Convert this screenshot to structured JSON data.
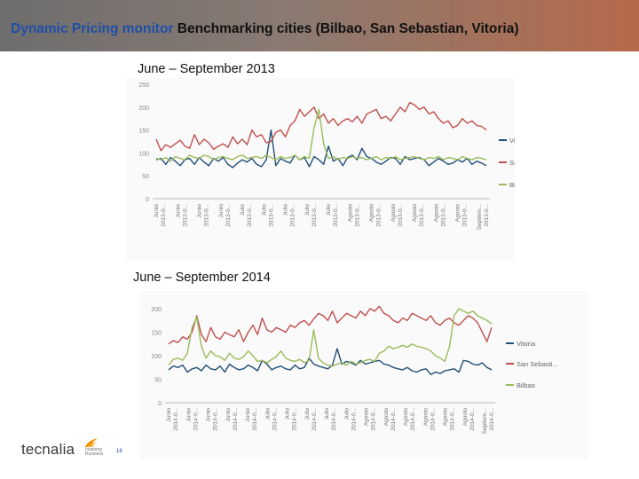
{
  "header": {
    "title_blue": "Dynamic Pricing monitor",
    "title_black": "Benchmarking cities (Bilbao, San Sebastian, Vitoria)"
  },
  "colors": {
    "vitoria": "#1f4e79",
    "san_sebastian": "#c0504d",
    "bilbao": "#9bbb59",
    "axis": "#888888"
  },
  "logo": {
    "text": "tecnalia",
    "tagline": [
      "Inspiring",
      "Business"
    ],
    "icon": "tecnalia-flame-icon"
  },
  "page_number": "16",
  "chart_data": [
    {
      "type": "line",
      "title": "June – September 2013",
      "ylim": [
        0,
        250
      ],
      "yticks": [
        "0",
        "50",
        "100",
        "150",
        "200",
        "250"
      ],
      "legend": [
        "Vitoria",
        "San Sebasti...",
        "Bilbao"
      ],
      "xtick_labels": [
        "Junio 2013-0...",
        "Junio 2013-0...",
        "Junio 2013-0...",
        "Junio 2013-0...",
        "Julio 2013-0...",
        "Julio 2013-0...",
        "Julio 2013-0...",
        "Julio 2013-0...",
        "Julio 2013-0...",
        "Agosto 2013-0...",
        "Agosto 2013-0...",
        "Agosto 2013-0...",
        "Agosto 2013-0...",
        "Agosto 2013-0...",
        "Agosto 2013-0...",
        "Septiem... 2013-0..."
      ],
      "series": [
        {
          "name": "Vitoria",
          "values": [
            85,
            88,
            75,
            90,
            82,
            72,
            85,
            88,
            75,
            90,
            80,
            72,
            88,
            82,
            90,
            75,
            68,
            78,
            85,
            80,
            88,
            75,
            70,
            85,
            150,
            72,
            88,
            82,
            78,
            95,
            85,
            90,
            70,
            92,
            85,
            75,
            115,
            82,
            88,
            72,
            90,
            95,
            85,
            110,
            92,
            88,
            80,
            75,
            82,
            90,
            88,
            75,
            92,
            85,
            88,
            90,
            85,
            72,
            80,
            88,
            82,
            75,
            78,
            85,
            80,
            88,
            75,
            82,
            78,
            72
          ]
        },
        {
          "name": "San Sebastian",
          "values": [
            130,
            105,
            118,
            112,
            120,
            128,
            115,
            110,
            140,
            118,
            130,
            122,
            108,
            115,
            120,
            112,
            135,
            120,
            130,
            118,
            150,
            135,
            140,
            122,
            125,
            145,
            150,
            135,
            160,
            170,
            195,
            180,
            190,
            200,
            175,
            185,
            165,
            175,
            160,
            170,
            175,
            168,
            180,
            165,
            185,
            190,
            195,
            175,
            180,
            170,
            185,
            200,
            190,
            210,
            205,
            195,
            200,
            185,
            190,
            175,
            165,
            170,
            155,
            160,
            175,
            165,
            170,
            160,
            158,
            150
          ]
        },
        {
          "name": "Bilbao",
          "values": [
            88,
            85,
            90,
            82,
            92,
            88,
            85,
            95,
            90,
            88,
            95,
            92,
            85,
            90,
            92,
            88,
            85,
            92,
            95,
            88,
            90,
            92,
            88,
            95,
            90,
            85,
            92,
            88,
            90,
            95,
            85,
            92,
            88,
            155,
            195,
            120,
            88,
            92,
            85,
            90,
            88,
            92,
            88,
            90,
            85,
            88,
            92,
            85,
            90,
            88,
            92,
            85,
            88,
            90,
            92,
            88,
            85,
            90,
            88,
            92,
            85,
            90,
            88,
            85,
            92,
            88,
            85,
            90,
            88,
            85
          ]
        }
      ]
    },
    {
      "type": "line",
      "title": "June – September 2014",
      "ylim": [
        0,
        200
      ],
      "yticks": [
        "0",
        "50",
        "100",
        "150",
        "200"
      ],
      "legend": [
        "Vitoria",
        "San Sebasti...",
        "Bilbao"
      ],
      "xtick_labels": [
        "Junio 2014-0...",
        "Junio 2014-0...",
        "Junio 2014-0...",
        "Junio 2014-0...",
        "Junio 2014-0...",
        "Julio 2014-0...",
        "Julio 2014-0...",
        "Julio 2014-0...",
        "Julio 2014-0...",
        "Julio 2014-0...",
        "Agosto 2014-0...",
        "Agosto 2014-0...",
        "Agosto 2014-0...",
        "Agosto 2014-0...",
        "Agosto 2014-0...",
        "Agosto 2014-0...",
        "Septiem... 2014-0..."
      ],
      "series": [
        {
          "name": "Vitoria",
          "values": [
            70,
            78,
            75,
            80,
            65,
            72,
            75,
            68,
            80,
            72,
            70,
            78,
            65,
            82,
            75,
            70,
            72,
            80,
            75,
            68,
            90,
            82,
            70,
            75,
            78,
            72,
            70,
            80,
            72,
            75,
            95,
            82,
            78,
            75,
            72,
            80,
            115,
            82,
            88,
            85,
            80,
            90,
            82,
            85,
            88,
            90,
            82,
            80,
            75,
            72,
            70,
            75,
            68,
            65,
            70,
            72,
            60,
            65,
            62,
            68,
            70,
            72,
            65,
            90,
            88,
            82,
            80,
            85,
            75,
            70
          ]
        },
        {
          "name": "San Sebastian",
          "values": [
            125,
            132,
            128,
            140,
            135,
            150,
            185,
            145,
            130,
            160,
            140,
            135,
            150,
            145,
            140,
            155,
            130,
            150,
            165,
            145,
            180,
            155,
            150,
            160,
            155,
            150,
            165,
            160,
            170,
            175,
            165,
            178,
            190,
            185,
            175,
            195,
            170,
            180,
            190,
            185,
            180,
            195,
            185,
            200,
            195,
            205,
            190,
            185,
            175,
            170,
            180,
            175,
            190,
            185,
            180,
            175,
            185,
            170,
            165,
            175,
            180,
            170,
            165,
            175,
            185,
            180,
            170,
            150,
            130,
            160
          ]
        },
        {
          "name": "Bilbao",
          "values": [
            80,
            92,
            95,
            90,
            105,
            160,
            182,
            120,
            95,
            110,
            100,
            98,
            90,
            105,
            95,
            92,
            98,
            110,
            100,
            88,
            90,
            85,
            92,
            98,
            110,
            95,
            90,
            88,
            92,
            85,
            90,
            155,
            95,
            85,
            80,
            78,
            82,
            85,
            80,
            88,
            82,
            85,
            90,
            92,
            88,
            105,
            110,
            120,
            115,
            118,
            122,
            118,
            125,
            120,
            118,
            115,
            110,
            100,
            95,
            88,
            120,
            185,
            200,
            195,
            190,
            195,
            185,
            180,
            175,
            168
          ]
        }
      ]
    }
  ]
}
